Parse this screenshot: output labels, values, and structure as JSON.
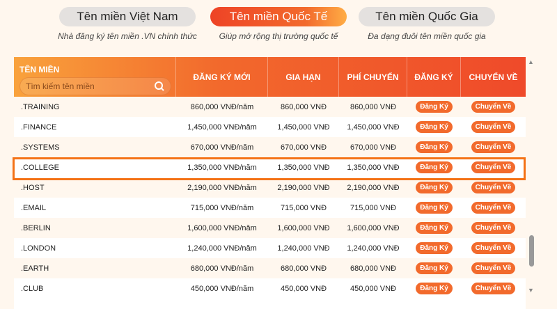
{
  "tabs": [
    {
      "label": "Tên miền Việt Nam",
      "desc": "Nhà đăng ký tên miền .VN chính thức"
    },
    {
      "label": "Tên miền Quốc Tế",
      "desc": "Giúp mở rộng thị trường quốc tế",
      "active": true
    },
    {
      "label": "Tên miền Quốc Gia",
      "desc": "Đa dạng đuôi tên miền quốc gia"
    }
  ],
  "table": {
    "headers": [
      "TÊN MIỀN",
      "ĐĂNG KÝ MỚI",
      "GIA HẠN",
      "PHÍ CHUYỂN",
      "ĐĂNG KÝ",
      "CHUYỂN VỀ"
    ],
    "search_placeholder": "Tìm kiếm tên miền",
    "register_label": "Đăng Ký",
    "transfer_label": "Chuyển Về",
    "highlighted": ".COLLEGE",
    "rows": [
      [
        ".TRAINING",
        "860,000 VNĐ/năm",
        "860,000 VNĐ",
        "860,000 VNĐ"
      ],
      [
        ".FINANCE",
        "1,450,000 VNĐ/năm",
        "1,450,000 VNĐ",
        "1,450,000 VNĐ"
      ],
      [
        ".SYSTEMS",
        "670,000 VNĐ/năm",
        "670,000 VNĐ",
        "670,000 VNĐ"
      ],
      [
        ".COLLEGE",
        "1,350,000 VNĐ/năm",
        "1,350,000 VNĐ",
        "1,350,000 VNĐ"
      ],
      [
        ".HOST",
        "2,190,000 VNĐ/năm",
        "2,190,000 VNĐ",
        "2,190,000 VNĐ"
      ],
      [
        ".EMAIL",
        "715,000 VNĐ/năm",
        "715,000 VNĐ",
        "715,000 VNĐ"
      ],
      [
        ".BERLIN",
        "1,600,000 VNĐ/năm",
        "1,600,000 VNĐ",
        "1,600,000 VNĐ"
      ],
      [
        ".LONDON",
        "1,240,000 VNĐ/năm",
        "1,240,000 VNĐ",
        "1,240,000 VNĐ"
      ],
      [
        ".EARTH",
        "680,000 VNĐ/năm",
        "680,000 VNĐ",
        "680,000 VNĐ"
      ],
      [
        ".CLUB",
        "450,000 VNĐ/năm",
        "450,000 VNĐ",
        "450,000 VNĐ"
      ]
    ]
  },
  "colors": {
    "accent": "#f26a2c",
    "highlight": "#f47216"
  }
}
